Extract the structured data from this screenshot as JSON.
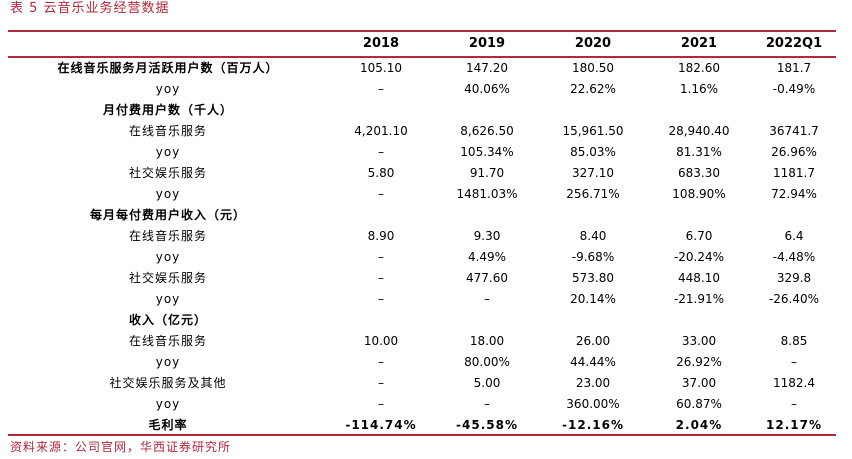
{
  "caption": "表 5 云音乐业务经营数据",
  "source": "资料来源：公司官网，华西证券研究所",
  "header": [
    "",
    "2018",
    "2019",
    "2020",
    "2021",
    "2022Q1"
  ],
  "rows": [
    {
      "label": "在线音乐服务月活跃用户数（百万人）",
      "values": [
        "105.10",
        "147.20",
        "180.50",
        "182.60",
        "181.7"
      ],
      "style": "sec"
    },
    {
      "label": "yoy",
      "values": [
        "–",
        "40.06%",
        "22.62%",
        "1.16%",
        "-0.49%"
      ],
      "style": ""
    },
    {
      "label": "月付费用户数（千人）",
      "values": [
        "",
        "",
        "",
        "",
        ""
      ],
      "style": "sec"
    },
    {
      "label": "在线音乐服务",
      "values": [
        "4,201.10",
        "8,626.50",
        "15,961.50",
        "28,940.40",
        "36741.7"
      ],
      "style": ""
    },
    {
      "label": "yoy",
      "values": [
        "–",
        "105.34%",
        "85.03%",
        "81.31%",
        "26.96%"
      ],
      "style": ""
    },
    {
      "label": "社交娱乐服务",
      "values": [
        "5.80",
        "91.70",
        "327.10",
        "683.30",
        "1181.7"
      ],
      "style": ""
    },
    {
      "label": "yoy",
      "values": [
        "–",
        "1481.03%",
        "256.71%",
        "108.90%",
        "72.94%"
      ],
      "style": ""
    },
    {
      "label": "每月每付费用户收入（元）",
      "values": [
        "",
        "",
        "",
        "",
        ""
      ],
      "style": "sec"
    },
    {
      "label": "在线音乐服务",
      "values": [
        "8.90",
        "9.30",
        "8.40",
        "6.70",
        "6.4"
      ],
      "style": ""
    },
    {
      "label": "yoy",
      "values": [
        "–",
        "4.49%",
        "-9.68%",
        "-20.24%",
        "-4.48%"
      ],
      "style": ""
    },
    {
      "label": "社交娱乐服务",
      "values": [
        "–",
        "477.60",
        "573.80",
        "448.10",
        "329.8"
      ],
      "style": ""
    },
    {
      "label": "yoy",
      "values": [
        "–",
        "–",
        "20.14%",
        "-21.91%",
        "-26.40%"
      ],
      "style": ""
    },
    {
      "label": "收入（亿元）",
      "values": [
        "",
        "",
        "",
        "",
        ""
      ],
      "style": "sec"
    },
    {
      "label": "在线音乐服务",
      "values": [
        "10.00",
        "18.00",
        "26.00",
        "33.00",
        "8.85"
      ],
      "style": ""
    },
    {
      "label": "yoy",
      "values": [
        "–",
        "80.00%",
        "44.44%",
        "26.92%",
        "–"
      ],
      "style": ""
    },
    {
      "label": "社交娱乐服务及其他",
      "values": [
        "–",
        "5.00",
        "23.00",
        "37.00",
        "1182.4"
      ],
      "style": ""
    },
    {
      "label": "yoy",
      "values": [
        "–",
        "–",
        "360.00%",
        "60.87%",
        "–"
      ],
      "style": ""
    },
    {
      "label": "毛利率",
      "values": [
        "-114.74%",
        "-45.58%",
        "-12.16%",
        "2.04%",
        "12.17%"
      ],
      "style": "bold"
    }
  ]
}
